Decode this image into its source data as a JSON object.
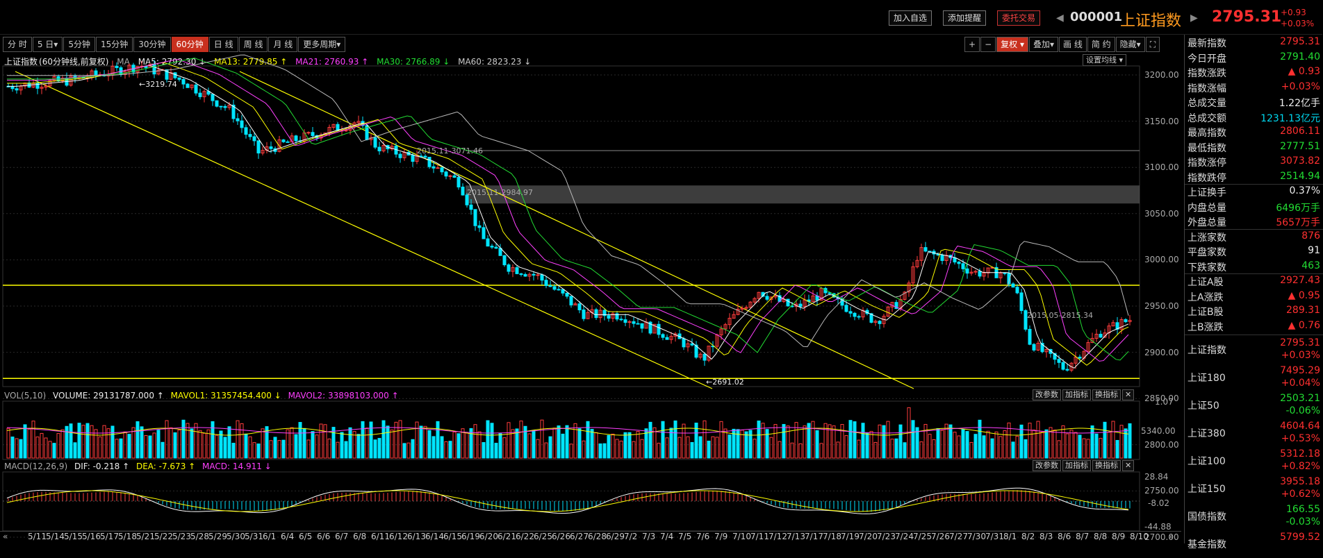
{
  "header": {
    "add_watch": "加入自选",
    "add_alert": "添加提醒",
    "trade": "委托交易",
    "code": "000001",
    "name": "上证指数",
    "price": "2795.31",
    "change": "+0.93",
    "change_pct": "+0.03%"
  },
  "periods": [
    "分 时",
    "5 日▾",
    "5分钟",
    "15分钟",
    "30分钟",
    "60分钟",
    "日 线",
    "周 线",
    "月 线",
    "更多周期▾"
  ],
  "active_period": "60分钟",
  "tools": [
    "+",
    "−",
    "复权 ▾",
    "叠加▾",
    "画 线",
    "简 约",
    "隐藏▾",
    "⛶"
  ],
  "ma_line": {
    "title": "上证指数",
    "subtitle": "(60分钟线,前复权)",
    "ma_label": "MA",
    "ma5": "MA5: 2792.30 ↓",
    "ma13": "MA13: 2779.85 ↑",
    "ma21": "MA21: 2760.93 ↑",
    "ma30": "MA30: 2766.89 ↓",
    "ma60": "MA60: 2823.23 ↓",
    "set_ma": "设置均线 ▾"
  },
  "price_axis": [
    "3200.00",
    "3150.00",
    "3100.00",
    "3050.00",
    "3000.00",
    "2950.00",
    "2900.00",
    "2850.00",
    "2800.00",
    "2750.00",
    "2700.00"
  ],
  "annotations": {
    "high": "3219.74",
    "low": "2691.02",
    "a1": "2015.11-2984.97",
    "a2": "2015.11-3071.46",
    "a3": "2015.05-2815.34"
  },
  "volume": {
    "label": "VOL(5,10)",
    "volume": "VOLUME: 29131787.000 ↑",
    "mavol1": "MAVOL1: 31357454.400 ↓",
    "mavol2": "MAVOL2: 33898103.000 ↑",
    "axis": [
      "1.07",
      "5340.00"
    ]
  },
  "macd": {
    "label": "MACD(12,26,9)",
    "dif": "DIF: -0.218 ↑",
    "dea": "DEA: -7.673 ↑",
    "macd": "MACD: 14.911 ↓",
    "axis": [
      "28.84",
      "-8.02",
      "-44.88"
    ]
  },
  "sub_buttons": {
    "param": "改参数",
    "add": "加指标",
    "swap": "换指标",
    "close": "✕"
  },
  "x_dates": [
    "5/11",
    "5/14",
    "5/15",
    "5/16",
    "5/17",
    "5/18",
    "5/21",
    "5/22",
    "5/23",
    "5/28",
    "5/29",
    "5/30",
    "5/31",
    "6/1",
    "6/4",
    "6/5",
    "6/6",
    "6/7",
    "6/8",
    "6/11",
    "6/12",
    "6/13",
    "6/14",
    "6/15",
    "6/19",
    "6/20",
    "6/21",
    "6/22",
    "6/25",
    "6/26",
    "6/27",
    "6/28",
    "6/29",
    "7/2",
    "7/3",
    "7/4",
    "7/5",
    "7/6",
    "7/9",
    "7/10",
    "7/11",
    "7/12",
    "7/13",
    "7/17",
    "7/18",
    "7/19",
    "7/20",
    "7/23",
    "7/24",
    "7/25",
    "7/26",
    "7/27",
    "7/30",
    "7/31",
    "8/1",
    "8/2",
    "8/3",
    "8/6",
    "8/7",
    "8/8",
    "8/9",
    "8/10"
  ],
  "side": [
    {
      "k": "最新指数",
      "v": "2795.31",
      "c": "r"
    },
    {
      "k": "今日开盘",
      "v": "2791.40",
      "c": "g"
    },
    {
      "k": "指数涨跌",
      "v": "▲ 0.93",
      "c": "r"
    },
    {
      "k": "指数涨幅",
      "v": "+0.03%",
      "c": "r"
    },
    {
      "k": "总成交量",
      "v": "1.22亿手",
      "c": "w"
    },
    {
      "k": "总成交额",
      "v": "1231.13亿元",
      "c": "c"
    },
    {
      "k": "最高指数",
      "v": "2806.11",
      "c": "r"
    },
    {
      "k": "最低指数",
      "v": "2777.51",
      "c": "g"
    },
    {
      "k": "指数涨停",
      "v": "3073.82",
      "c": "r"
    },
    {
      "k": "指数跌停",
      "v": "2514.94",
      "c": "g"
    },
    {
      "k": "上证换手",
      "v": "0.37%",
      "c": "w"
    },
    {
      "k": "内盘总量",
      "v": "6496万手",
      "c": "g"
    },
    {
      "k": "外盘总量",
      "v": "5657万手",
      "c": "r"
    },
    {
      "k": "上涨家数",
      "v": "876",
      "c": "r"
    },
    {
      "k": "平盘家数",
      "v": "91",
      "c": "w"
    },
    {
      "k": "下跌家数",
      "v": "463",
      "c": "g"
    },
    {
      "k": "上证A股",
      "v": "2927.43",
      "c": "r"
    },
    {
      "k": "上A涨跌",
      "v": "▲ 0.95",
      "c": "r"
    },
    {
      "k": "上证B股",
      "v": "289.31",
      "c": "r"
    },
    {
      "k": "上B涨跌",
      "v": "▲ 0.76",
      "c": "r"
    }
  ],
  "side_indexes": [
    {
      "k": "上证指数",
      "v": "2795.31",
      "p": "+0.03%",
      "c": "r"
    },
    {
      "k": "上证180",
      "v": "7495.29",
      "p": "+0.04%",
      "c": "r"
    },
    {
      "k": "上证50",
      "v": "2503.21",
      "p": "-0.06%",
      "c": "g"
    },
    {
      "k": "上证380",
      "v": "4604.64",
      "p": "+0.53%",
      "c": "r"
    },
    {
      "k": "上证100",
      "v": "5312.18",
      "p": "+0.82%",
      "c": "r"
    },
    {
      "k": "上证150",
      "v": "3955.18",
      "p": "+0.62%",
      "c": "r"
    },
    {
      "k": "国债指数",
      "v": "166.55",
      "p": "-0.03%",
      "c": "g"
    },
    {
      "k": "基金指数",
      "v": "5799.52",
      "p": "",
      "c": "r"
    }
  ]
}
